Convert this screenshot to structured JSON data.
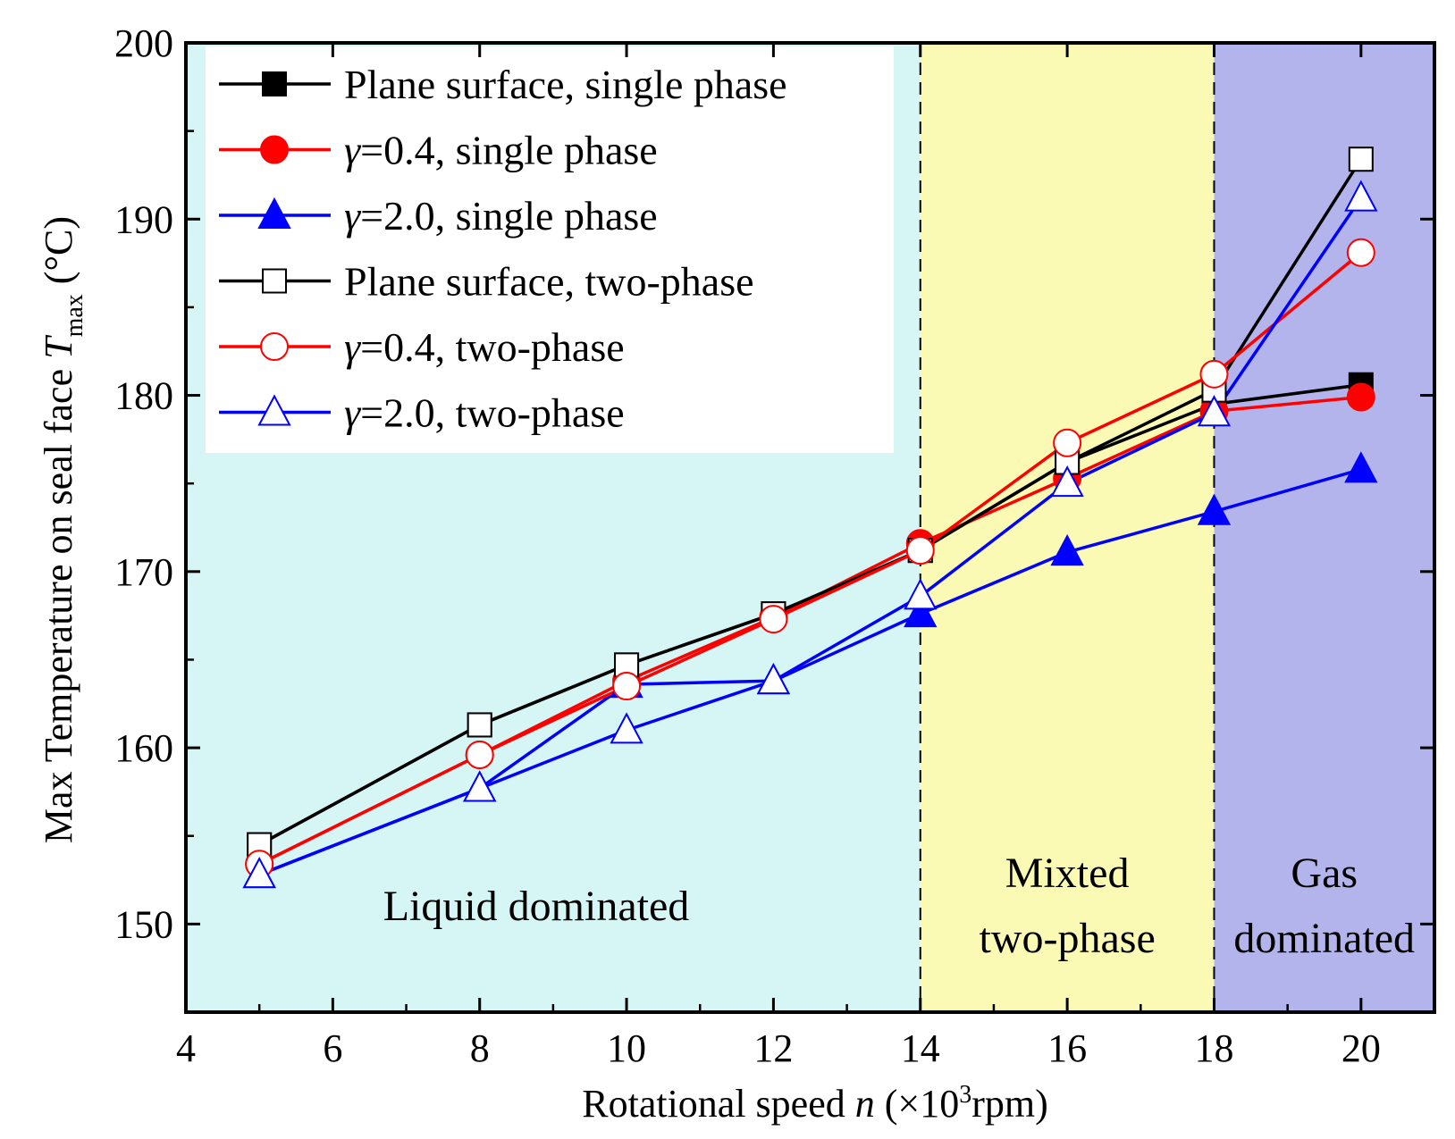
{
  "chart_data": {
    "type": "line",
    "xlabel": "Rotational speed n (×10³rpm)",
    "xlabel_parts": {
      "before": "Rotational speed ",
      "italic": "n",
      "mid": " (×10",
      "sup": "3",
      "after": "rpm)"
    },
    "ylabel_parts": {
      "before": "Max Temperature on seal face ",
      "italic": "T",
      "sub": "max",
      "after": " (°C)"
    },
    "xlim": [
      4,
      21
    ],
    "ylim": [
      145,
      200
    ],
    "xticks": [
      4,
      6,
      8,
      10,
      12,
      14,
      16,
      18,
      20
    ],
    "yticks": [
      150,
      160,
      170,
      180,
      190,
      200
    ],
    "grid": false,
    "legend_position": "top-left",
    "regions": [
      {
        "x0": 4,
        "x1": 14,
        "color": "#d6f5f5",
        "lines": [
          "Liquid dominated"
        ]
      },
      {
        "x0": 14,
        "x1": 18,
        "color": "#fafab4",
        "lines": [
          "Mixted",
          "two-phase"
        ]
      },
      {
        "x0": 18,
        "x1": 21,
        "color": "#b4b4ec",
        "lines": [
          "Gas",
          "dominated"
        ]
      }
    ],
    "divider_x": [
      14,
      18
    ],
    "series": [
      {
        "name": "Plane surface, single phase",
        "color": "#000000",
        "marker": "square",
        "filled": true,
        "x": [
          5,
          8,
          10,
          12,
          14,
          16,
          18,
          20
        ],
        "y": [
          154.5,
          161.3,
          164.7,
          167.6,
          171.2,
          176.2,
          179.5,
          180.6
        ]
      },
      {
        "name": "γ=0.4, single phase",
        "greek": "γ",
        "rest": "=0.4, single phase",
        "color": "#ff0000",
        "marker": "circle",
        "filled": true,
        "x": [
          5,
          8,
          10,
          12,
          14,
          16,
          18,
          20
        ],
        "y": [
          153.4,
          159.6,
          163.8,
          167.4,
          171.6,
          175.3,
          179.1,
          179.9
        ]
      },
      {
        "name": "γ=2.0, single phase",
        "greek": "γ",
        "rest": "=2.0, single phase",
        "color": "#0000ff",
        "marker": "triangle",
        "filled": true,
        "x": [
          5,
          8,
          10,
          12,
          14,
          16,
          18,
          20
        ],
        "y": [
          152.8,
          157.7,
          163.6,
          163.8,
          167.6,
          171.1,
          173.4,
          175.8
        ]
      },
      {
        "name": "Plane surface, two-phase",
        "color": "#000000",
        "marker": "square",
        "filled": false,
        "x": [
          5,
          8,
          10,
          12,
          14,
          16,
          18,
          20
        ],
        "y": [
          154.5,
          161.3,
          164.7,
          167.6,
          171.2,
          176.2,
          180.3,
          193.4
        ]
      },
      {
        "name": "γ=0.4, two-phase",
        "greek": "γ",
        "rest": "=0.4, two-phase",
        "color": "#ff0000",
        "marker": "circle",
        "filled": false,
        "x": [
          5,
          8,
          10,
          12,
          14,
          16,
          18,
          20
        ],
        "y": [
          153.4,
          159.6,
          163.5,
          167.3,
          171.2,
          177.3,
          181.2,
          188.1
        ]
      },
      {
        "name": "γ=2.0, two-phase",
        "greek": "γ",
        "rest": "=2.0, two-phase",
        "color": "#0000ff",
        "marker": "triangle",
        "filled": false,
        "x": [
          5,
          8,
          10,
          12,
          14,
          16,
          18,
          20
        ],
        "y": [
          152.8,
          157.7,
          161.0,
          163.8,
          168.6,
          175.0,
          179.0,
          191.2
        ]
      }
    ]
  }
}
